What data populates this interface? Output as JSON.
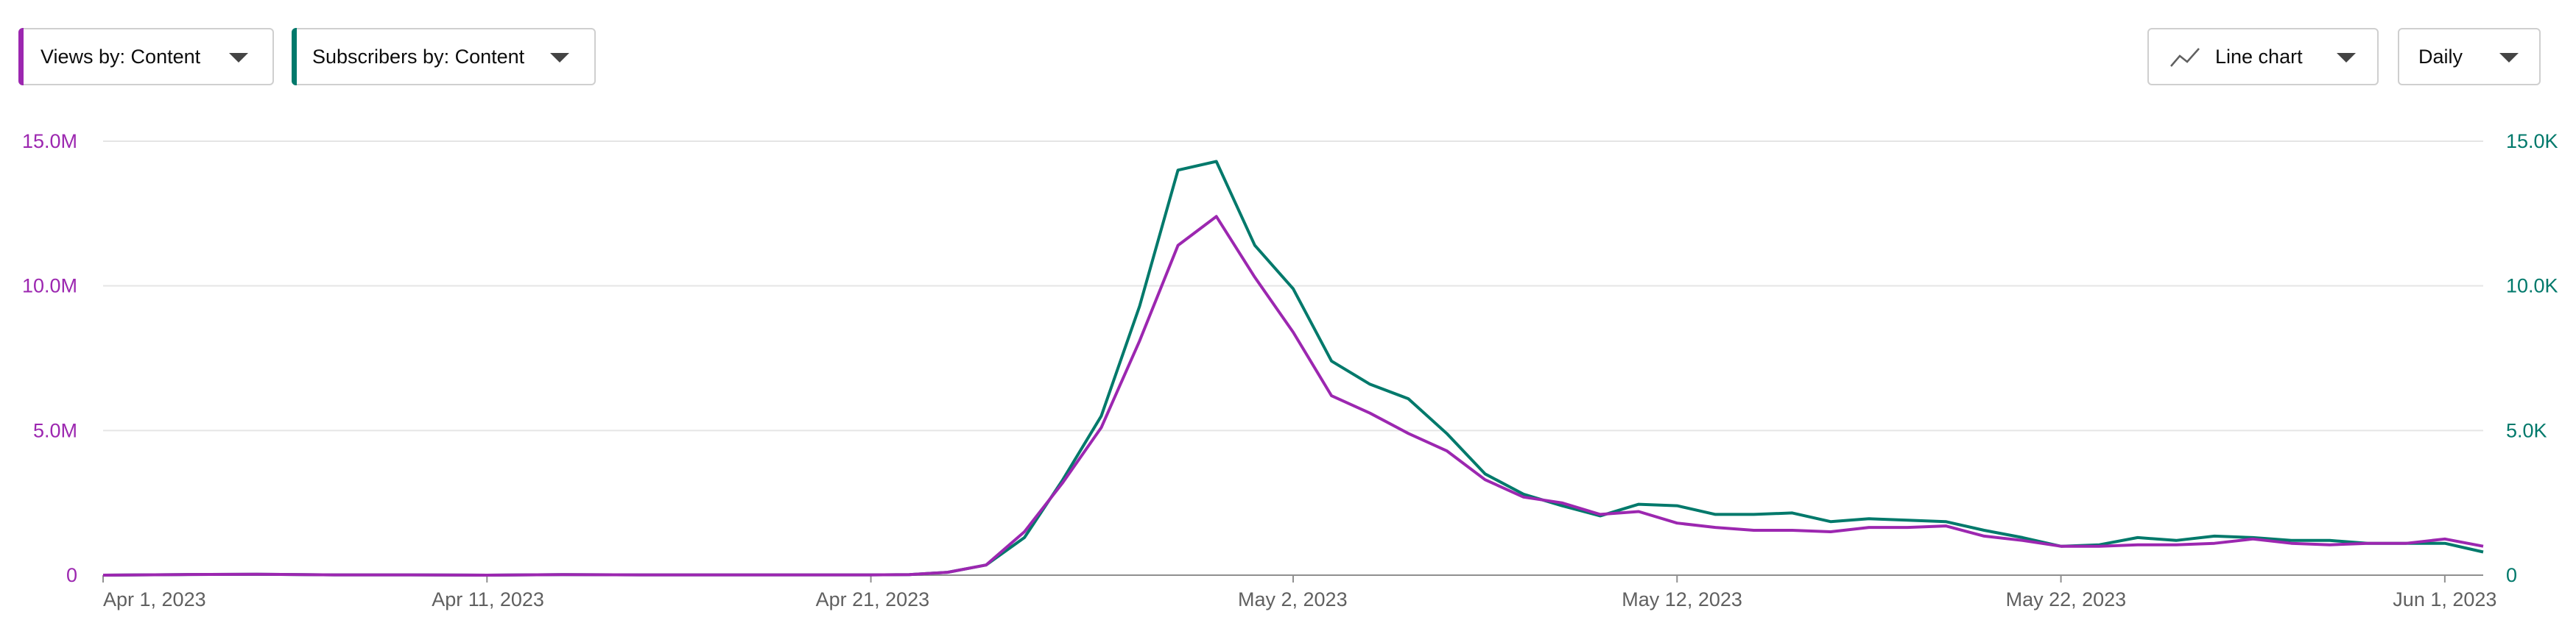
{
  "controls": {
    "views_dropdown": "Views by: Content",
    "subscribers_dropdown": "Subscribers by: Content",
    "chart_type_dropdown": "Line chart",
    "period_dropdown": "Daily"
  },
  "colors": {
    "views": "#9c27b0",
    "subscribers": "#00796b",
    "gridline": "#e5e5e5",
    "axis": "#909090"
  },
  "icons": {
    "chart_type": "line-chart-icon",
    "dropdown": "chevron-down-icon"
  },
  "chart_data": {
    "type": "line",
    "title": "",
    "x_start": "2023-04-01",
    "x_end": "2023-06-02",
    "x_ticks": [
      "Apr 1, 2023",
      "Apr 11, 2023",
      "Apr 21, 2023",
      "May 2, 2023",
      "May 12, 2023",
      "May 22, 2023",
      "Jun 1, 2023"
    ],
    "x_tick_dates": [
      "2023-04-01",
      "2023-04-11",
      "2023-04-21",
      "2023-05-02",
      "2023-05-12",
      "2023-05-22",
      "2023-06-01"
    ],
    "y_left": {
      "ticks": [
        "0",
        "5.0M",
        "10.0M",
        "15.0M"
      ],
      "range": [
        0,
        15000000
      ]
    },
    "y_right": {
      "ticks": [
        "0",
        "5.0K",
        "10.0K",
        "15.0K"
      ],
      "range": [
        0,
        15000
      ]
    },
    "grid": true,
    "series": [
      {
        "name": "Views by: Content",
        "axis": "left",
        "points": [
          [
            "2023-04-01",
            0
          ],
          [
            "2023-04-03",
            20000
          ],
          [
            "2023-04-05",
            30000
          ],
          [
            "2023-04-07",
            10000
          ],
          [
            "2023-04-09",
            10000
          ],
          [
            "2023-04-11",
            0
          ],
          [
            "2023-04-13",
            20000
          ],
          [
            "2023-04-15",
            10000
          ],
          [
            "2023-04-17",
            10000
          ],
          [
            "2023-04-19",
            10000
          ],
          [
            "2023-04-21",
            10000
          ],
          [
            "2023-04-22",
            20000
          ],
          [
            "2023-04-23",
            100000
          ],
          [
            "2023-04-24",
            350000
          ],
          [
            "2023-04-25",
            1500000
          ],
          [
            "2023-04-26",
            3200000
          ],
          [
            "2023-04-27",
            5100000
          ],
          [
            "2023-04-28",
            8100000
          ],
          [
            "2023-04-29",
            11400000
          ],
          [
            "2023-04-30",
            12400000
          ],
          [
            "2023-05-01",
            10300000
          ],
          [
            "2023-05-02",
            8400000
          ],
          [
            "2023-05-03",
            6200000
          ],
          [
            "2023-05-04",
            5600000
          ],
          [
            "2023-05-05",
            4900000
          ],
          [
            "2023-05-06",
            4300000
          ],
          [
            "2023-05-07",
            3300000
          ],
          [
            "2023-05-08",
            2700000
          ],
          [
            "2023-05-09",
            2500000
          ],
          [
            "2023-05-10",
            2100000
          ],
          [
            "2023-05-11",
            2200000
          ],
          [
            "2023-05-12",
            1800000
          ],
          [
            "2023-05-13",
            1650000
          ],
          [
            "2023-05-14",
            1550000
          ],
          [
            "2023-05-15",
            1550000
          ],
          [
            "2023-05-16",
            1500000
          ],
          [
            "2023-05-17",
            1650000
          ],
          [
            "2023-05-18",
            1650000
          ],
          [
            "2023-05-19",
            1700000
          ],
          [
            "2023-05-20",
            1350000
          ],
          [
            "2023-05-21",
            1200000
          ],
          [
            "2023-05-22",
            1000000
          ],
          [
            "2023-05-23",
            1000000
          ],
          [
            "2023-05-24",
            1050000
          ],
          [
            "2023-05-25",
            1050000
          ],
          [
            "2023-05-26",
            1100000
          ],
          [
            "2023-05-27",
            1250000
          ],
          [
            "2023-05-28",
            1100000
          ],
          [
            "2023-05-29",
            1050000
          ],
          [
            "2023-05-30",
            1100000
          ],
          [
            "2023-05-31",
            1100000
          ],
          [
            "2023-06-01",
            1250000
          ],
          [
            "2023-06-02",
            1000000
          ]
        ]
      },
      {
        "name": "Subscribers by: Content",
        "axis": "right",
        "points": [
          [
            "2023-04-01",
            0
          ],
          [
            "2023-04-03",
            20
          ],
          [
            "2023-04-05",
            30
          ],
          [
            "2023-04-07",
            10
          ],
          [
            "2023-04-09",
            10
          ],
          [
            "2023-04-11",
            0
          ],
          [
            "2023-04-13",
            20
          ],
          [
            "2023-04-15",
            10
          ],
          [
            "2023-04-17",
            10
          ],
          [
            "2023-04-19",
            10
          ],
          [
            "2023-04-21",
            10
          ],
          [
            "2023-04-22",
            20
          ],
          [
            "2023-04-23",
            100
          ],
          [
            "2023-04-24",
            350
          ],
          [
            "2023-04-25",
            1300
          ],
          [
            "2023-04-26",
            3300
          ],
          [
            "2023-04-27",
            5500
          ],
          [
            "2023-04-28",
            9300
          ],
          [
            "2023-04-29",
            14000
          ],
          [
            "2023-04-30",
            14300
          ],
          [
            "2023-05-01",
            11400
          ],
          [
            "2023-05-02",
            9900
          ],
          [
            "2023-05-03",
            7400
          ],
          [
            "2023-05-04",
            6600
          ],
          [
            "2023-05-05",
            6100
          ],
          [
            "2023-05-06",
            4900
          ],
          [
            "2023-05-07",
            3500
          ],
          [
            "2023-05-08",
            2800
          ],
          [
            "2023-05-09",
            2400
          ],
          [
            "2023-05-10",
            2050
          ],
          [
            "2023-05-11",
            2450
          ],
          [
            "2023-05-12",
            2400
          ],
          [
            "2023-05-13",
            2100
          ],
          [
            "2023-05-14",
            2100
          ],
          [
            "2023-05-15",
            2150
          ],
          [
            "2023-05-16",
            1850
          ],
          [
            "2023-05-17",
            1950
          ],
          [
            "2023-05-18",
            1900
          ],
          [
            "2023-05-19",
            1850
          ],
          [
            "2023-05-20",
            1550
          ],
          [
            "2023-05-21",
            1300
          ],
          [
            "2023-05-22",
            1000
          ],
          [
            "2023-05-23",
            1050
          ],
          [
            "2023-05-24",
            1300
          ],
          [
            "2023-05-25",
            1200
          ],
          [
            "2023-05-26",
            1350
          ],
          [
            "2023-05-27",
            1300
          ],
          [
            "2023-05-28",
            1200
          ],
          [
            "2023-05-29",
            1200
          ],
          [
            "2023-05-30",
            1100
          ],
          [
            "2023-05-31",
            1100
          ],
          [
            "2023-06-01",
            1100
          ],
          [
            "2023-06-02",
            800
          ]
        ]
      }
    ]
  }
}
